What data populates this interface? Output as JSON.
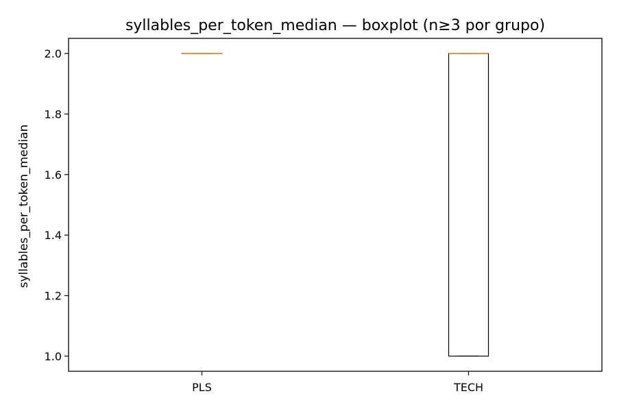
{
  "chart_data": {
    "type": "boxplot",
    "title": "syllables_per_token_median — boxplot (n≥3 por grupo)",
    "xlabel": "",
    "ylabel": "syllables_per_token_median",
    "categories": [
      "PLS",
      "TECH"
    ],
    "boxes": [
      {
        "category": "PLS",
        "min": 2.0,
        "q1": 2.0,
        "median": 2.0,
        "q3": 2.0,
        "max": 2.0
      },
      {
        "category": "TECH",
        "min": 1.0,
        "q1": 1.0,
        "median": 2.0,
        "q3": 2.0,
        "max": 2.0
      }
    ],
    "ylim": [
      0.95,
      2.05
    ],
    "yticks": [
      1.0,
      1.2,
      1.4,
      1.6,
      1.8,
      2.0
    ],
    "ytick_labels": [
      "1.0",
      "1.2",
      "1.4",
      "1.6",
      "1.8",
      "2.0"
    ],
    "grid": false,
    "colors": {
      "box": "#000000",
      "median": "#ff7f0e",
      "background": "#ffffff"
    }
  }
}
